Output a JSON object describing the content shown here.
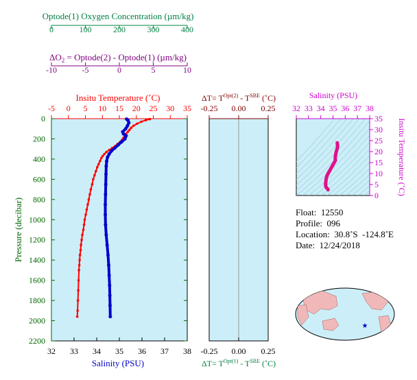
{
  "colors": {
    "oxygen": "#008040",
    "delta_o2": "#800080",
    "temperature": "#ff0000",
    "salinity": "#0000cc",
    "pressure": "#006600",
    "ts": "#e0108c",
    "panel_bg": "#cceef8",
    "grid": "#9acfe0"
  },
  "axes": {
    "oxygen": {
      "label": "Optode(1) Oxygen Concentration (µm/kg)",
      "ticks": [
        "0",
        "100",
        "200",
        "300",
        "400"
      ]
    },
    "delta_o2": {
      "label_parts": [
        "ΔO",
        "2",
        " = Optode(2) - Optode(1)    (µm/kg)"
      ],
      "ticks": [
        "-10",
        "-5",
        "0",
        "5",
        "10"
      ]
    },
    "temperature": {
      "label": "Insitu Temperature (˚C)",
      "ticks": [
        "-5",
        "0",
        "5",
        "10",
        "15",
        "20",
        "25",
        "30",
        "35"
      ]
    },
    "salinity": {
      "label": "Salinity (PSU)",
      "ticks": [
        "32",
        "33",
        "34",
        "35",
        "36",
        "37",
        "38"
      ]
    },
    "pressure": {
      "label": "Pressure (decibar)",
      "ticks": [
        "0",
        "200",
        "400",
        "600",
        "800",
        "1000",
        "1200",
        "1400",
        "1600",
        "1800",
        "2000",
        "2200"
      ]
    },
    "dt_top": {
      "label_parts": [
        "ΔT= T",
        "Opt(2)",
        " - T",
        "SBE",
        " (˚C)"
      ],
      "ticks": [
        "-0.25",
        "0.00",
        "0.25"
      ]
    },
    "dt_bottom": {
      "label_parts": [
        "ΔT= T",
        "Opt(1)",
        " - T",
        "SBE",
        " (˚C)"
      ],
      "ticks": [
        "-0.25",
        "0.00",
        "0.25"
      ]
    },
    "ts_salinity": {
      "label": "Salinity (PSU)",
      "ticks": [
        "32",
        "33",
        "34",
        "35",
        "36",
        "37",
        "38"
      ]
    },
    "ts_temperature": {
      "label": "Insitu Temperature (˚C)",
      "ticks": [
        "0",
        "5",
        "10",
        "15",
        "20",
        "25",
        "30",
        "35"
      ]
    }
  },
  "info": {
    "float": "Float:  12550",
    "profile": "Profile:  096",
    "location": "Location:  30.8˚S  -124.8˚E",
    "date": "Date:  12/24/2018"
  },
  "chart_data": [
    {
      "type": "line",
      "title": "",
      "ylabel": "Pressure (decibar)",
      "ylim": [
        2200,
        0
      ],
      "xlabel_top": "Insitu Temperature (˚C)",
      "xlabel_bottom": "Salinity (PSU)",
      "series": [
        {
          "name": "Insitu Temperature (˚C)",
          "axis": "temperature",
          "xlim": [
            -5,
            35
          ],
          "points": [
            [
              24.0,
              4
            ],
            [
              22.8,
              15
            ],
            [
              21.5,
              30
            ],
            [
              20.2,
              50
            ],
            [
              19.2,
              70
            ],
            [
              18.5,
              90
            ],
            [
              18.0,
              110
            ],
            [
              17.5,
              130
            ],
            [
              17.0,
              150
            ],
            [
              16.6,
              170
            ],
            [
              16.2,
              190
            ],
            [
              15.8,
              210
            ],
            [
              15.2,
              230
            ],
            [
              14.5,
              250
            ],
            [
              13.8,
              270
            ],
            [
              12.9,
              290
            ],
            [
              12.0,
              310
            ],
            [
              11.2,
              330
            ],
            [
              10.6,
              350
            ],
            [
              10.1,
              370
            ],
            [
              9.7,
              390
            ],
            [
              9.3,
              420
            ],
            [
              8.9,
              450
            ],
            [
              8.5,
              480
            ],
            [
              8.1,
              520
            ],
            [
              7.7,
              560
            ],
            [
              7.3,
              600
            ],
            [
              7.0,
              650
            ],
            [
              6.6,
              700
            ],
            [
              6.3,
              750
            ],
            [
              6.0,
              800
            ],
            [
              5.7,
              850
            ],
            [
              5.4,
              900
            ],
            [
              5.1,
              950
            ],
            [
              4.8,
              1000
            ],
            [
              4.6,
              1050
            ],
            [
              4.4,
              1100
            ],
            [
              4.1,
              1150
            ],
            [
              3.9,
              1200
            ],
            [
              3.7,
              1250
            ],
            [
              3.6,
              1300
            ],
            [
              3.4,
              1350
            ],
            [
              3.3,
              1400
            ],
            [
              3.2,
              1450
            ],
            [
              3.1,
              1500
            ],
            [
              3.0,
              1600
            ],
            [
              2.9,
              1700
            ],
            [
              2.8,
              1800
            ],
            [
              2.7,
              1900
            ],
            [
              2.6,
              1960
            ]
          ]
        },
        {
          "name": "Salinity (PSU)",
          "axis": "salinity",
          "xlim": [
            32,
            38
          ],
          "points": [
            [
              35.32,
              4
            ],
            [
              35.38,
              15
            ],
            [
              35.42,
              40
            ],
            [
              35.36,
              70
            ],
            [
              35.28,
              100
            ],
            [
              35.15,
              130
            ],
            [
              35.18,
              150
            ],
            [
              35.3,
              170
            ],
            [
              35.25,
              200
            ],
            [
              35.1,
              230
            ],
            [
              34.95,
              260
            ],
            [
              34.8,
              290
            ],
            [
              34.65,
              320
            ],
            [
              34.55,
              350
            ],
            [
              34.48,
              380
            ],
            [
              34.44,
              420
            ],
            [
              34.42,
              470
            ],
            [
              34.41,
              550
            ],
            [
              34.4,
              650
            ],
            [
              34.39,
              750
            ],
            [
              34.38,
              850
            ],
            [
              34.38,
              950
            ],
            [
              34.39,
              1050
            ],
            [
              34.42,
              1150
            ],
            [
              34.46,
              1250
            ],
            [
              34.5,
              1350
            ],
            [
              34.53,
              1450
            ],
            [
              34.55,
              1550
            ],
            [
              34.57,
              1650
            ],
            [
              34.58,
              1750
            ],
            [
              34.59,
              1850
            ],
            [
              34.6,
              1960
            ]
          ]
        }
      ]
    },
    {
      "type": "line",
      "title": "",
      "xlabel_top": "ΔT= TOpt(2) - TSBE (˚C)",
      "xlabel_bottom": "ΔT= TOpt(1) - TSBE (˚C)",
      "xlim": [
        -0.25,
        0.25
      ],
      "ylim": [
        2200,
        0
      ],
      "series": []
    },
    {
      "type": "scatter",
      "title": "",
      "xlabel": "Salinity (PSU)",
      "ylabel": "Insitu Temperature (˚C)",
      "xlim": [
        32,
        38
      ],
      "ylim": [
        0,
        35
      ],
      "series": [
        {
          "name": "",
          "points": [
            [
              35.35,
              24.0
            ],
            [
              35.38,
              22.5
            ],
            [
              35.35,
              21.5
            ],
            [
              35.25,
              19.5
            ],
            [
              35.2,
              18.0
            ],
            [
              35.18,
              17.0
            ],
            [
              35.2,
              16.0
            ],
            [
              35.1,
              15.0
            ],
            [
              34.95,
              13.5
            ],
            [
              34.8,
              12.0
            ],
            [
              34.65,
              10.5
            ],
            [
              34.55,
              9.5
            ],
            [
              34.48,
              8.5
            ],
            [
              34.44,
              7.5
            ],
            [
              34.42,
              6.5
            ],
            [
              34.4,
              5.5
            ],
            [
              34.4,
              4.5
            ],
            [
              34.42,
              4.0
            ],
            [
              34.47,
              3.5
            ],
            [
              34.53,
              3.2
            ],
            [
              34.58,
              2.9
            ],
            [
              34.6,
              2.6
            ]
          ]
        }
      ]
    }
  ]
}
